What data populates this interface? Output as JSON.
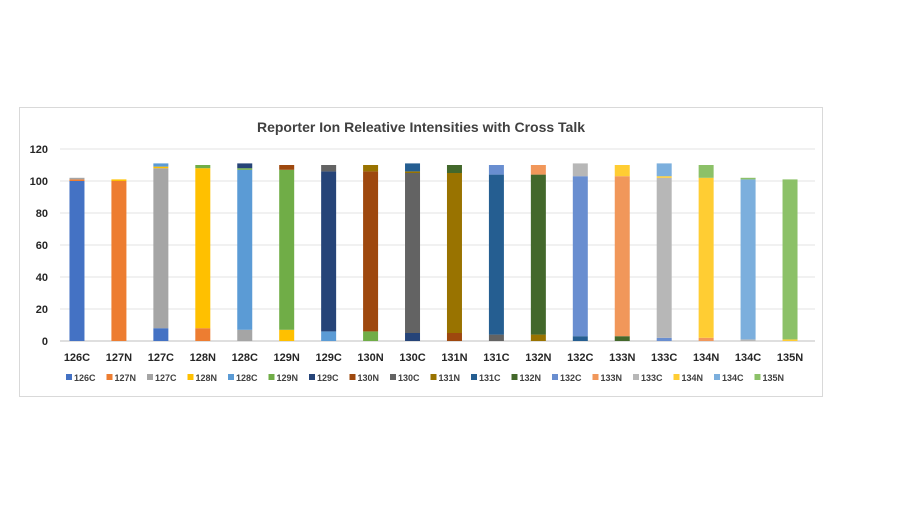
{
  "chart_data": {
    "type": "bar",
    "stacked": true,
    "title": "Reporter Ion Releative Intensities with Cross Talk",
    "ylim": [
      0,
      120
    ],
    "yticks": [
      0,
      20,
      40,
      60,
      80,
      100,
      120
    ],
    "grid": true,
    "legend_position": "bottom",
    "categories": [
      "126C",
      "127N",
      "127C",
      "128N",
      "128C",
      "129N",
      "129C",
      "130N",
      "130C",
      "131N",
      "131C",
      "132N",
      "132C",
      "133N",
      "133C",
      "134N",
      "134C",
      "135N"
    ],
    "series": [
      {
        "name": "126C",
        "color": "#4472C4",
        "values": [
          100,
          0,
          8,
          0,
          0,
          0,
          0,
          0,
          0,
          0,
          0,
          0,
          0,
          0,
          0,
          0,
          0,
          0
        ]
      },
      {
        "name": "127N",
        "color": "#ED7D31",
        "values": [
          1,
          100,
          0,
          8,
          0,
          0,
          0,
          0,
          0,
          0,
          0,
          0,
          0,
          0,
          0,
          0,
          0,
          0
        ]
      },
      {
        "name": "127C",
        "color": "#A5A5A5",
        "values": [
          1,
          0,
          100,
          0,
          7,
          0,
          0,
          0,
          0,
          0,
          0,
          0,
          0,
          0,
          0,
          0,
          0,
          0
        ]
      },
      {
        "name": "128N",
        "color": "#FFC000",
        "values": [
          0,
          1,
          1,
          100,
          0,
          7,
          0,
          0,
          0,
          0,
          0,
          0,
          0,
          0,
          0,
          0,
          0,
          0
        ]
      },
      {
        "name": "128C",
        "color": "#5B9BD5",
        "values": [
          0,
          0,
          2,
          0,
          100,
          0,
          6,
          0,
          0,
          0,
          0,
          0,
          0,
          0,
          0,
          0,
          0,
          0
        ]
      },
      {
        "name": "129N",
        "color": "#70AD47",
        "values": [
          0,
          0,
          0,
          2,
          1,
          100,
          0,
          6,
          0,
          0,
          0,
          0,
          0,
          0,
          0,
          0,
          0,
          0
        ]
      },
      {
        "name": "129C",
        "color": "#264478",
        "values": [
          0,
          0,
          0,
          0,
          3,
          0,
          100,
          0,
          5,
          0,
          0,
          0,
          0,
          0,
          0,
          0,
          0,
          0
        ]
      },
      {
        "name": "130N",
        "color": "#9E480E",
        "values": [
          0,
          0,
          0,
          0,
          0,
          3,
          0,
          100,
          0,
          5,
          0,
          0,
          0,
          0,
          0,
          0,
          0,
          0
        ]
      },
      {
        "name": "130C",
        "color": "#636363",
        "values": [
          0,
          0,
          0,
          0,
          0,
          0,
          4,
          0,
          100,
          0,
          4,
          0,
          0,
          0,
          0,
          0,
          0,
          0
        ]
      },
      {
        "name": "131N",
        "color": "#997300",
        "values": [
          0,
          0,
          0,
          0,
          0,
          0,
          0,
          4,
          1,
          100,
          0,
          4,
          0,
          0,
          0,
          0,
          0,
          0
        ]
      },
      {
        "name": "131C",
        "color": "#255E91",
        "values": [
          0,
          0,
          0,
          0,
          0,
          0,
          0,
          0,
          5,
          0,
          100,
          0,
          3,
          0,
          0,
          0,
          0,
          0
        ]
      },
      {
        "name": "132N",
        "color": "#43682B",
        "values": [
          0,
          0,
          0,
          0,
          0,
          0,
          0,
          0,
          0,
          5,
          0,
          100,
          0,
          3,
          0,
          0,
          0,
          0
        ]
      },
      {
        "name": "132C",
        "color": "#698ED0",
        "values": [
          0,
          0,
          0,
          0,
          0,
          0,
          0,
          0,
          0,
          0,
          6,
          0,
          100,
          0,
          2,
          0,
          0,
          0
        ]
      },
      {
        "name": "133N",
        "color": "#F1975A",
        "values": [
          0,
          0,
          0,
          0,
          0,
          0,
          0,
          0,
          0,
          0,
          0,
          6,
          0,
          100,
          0,
          2,
          0,
          0
        ]
      },
      {
        "name": "133C",
        "color": "#B7B7B7",
        "values": [
          0,
          0,
          0,
          0,
          0,
          0,
          0,
          0,
          0,
          0,
          0,
          0,
          8,
          0,
          100,
          0,
          1,
          0
        ]
      },
      {
        "name": "134N",
        "color": "#FFCD33",
        "values": [
          0,
          0,
          0,
          0,
          0,
          0,
          0,
          0,
          0,
          0,
          0,
          0,
          0,
          7,
          1,
          100,
          0,
          1
        ]
      },
      {
        "name": "134C",
        "color": "#7CAFDD",
        "values": [
          0,
          0,
          0,
          0,
          0,
          0,
          0,
          0,
          0,
          0,
          0,
          0,
          0,
          0,
          8,
          0,
          100,
          0
        ]
      },
      {
        "name": "135N",
        "color": "#8CC168",
        "values": [
          0,
          0,
          0,
          0,
          0,
          0,
          0,
          0,
          0,
          0,
          0,
          0,
          0,
          0,
          0,
          8,
          1,
          100
        ]
      }
    ]
  }
}
